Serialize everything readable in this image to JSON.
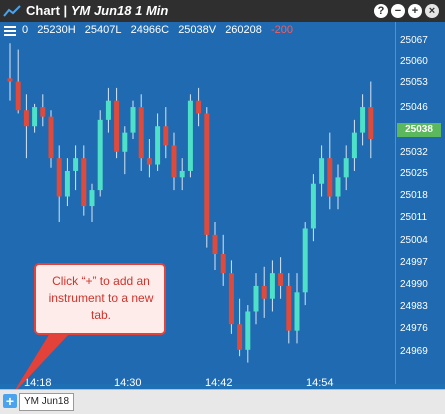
{
  "window": {
    "title": "Chart |",
    "subtitle": "YM Jun18 1 Min",
    "help_btn": "?",
    "min_btn": "−",
    "add_btn": "+",
    "close_btn": "×"
  },
  "infobar": {
    "volume": "0",
    "high": "25230H",
    "low": "25407L",
    "close": "24966C",
    "vol": "25038V",
    "count": "260208",
    "change": "-200"
  },
  "price_axis": {
    "labels": [
      "25067",
      "25060",
      "25053",
      "25046",
      "25039",
      "25032",
      "25025",
      "25018",
      "25011",
      "25004",
      "24997",
      "24990",
      "24983",
      "24976",
      "24969"
    ],
    "current_price": "25038",
    "current_price_color": "#5cb85c"
  },
  "time_axis": {
    "labels": [
      "14:18",
      "14:30",
      "14:42",
      "14:54"
    ]
  },
  "callout": {
    "text": "Click “+” to add an instrument to a new tab."
  },
  "bottom": {
    "add_label": "+",
    "tab_label": "YM Jun18"
  },
  "colors": {
    "background": "#1f6ab0",
    "up_candle": "#4fe0c8",
    "down_candle": "#e04a3a",
    "titlebar": "#2f2f2f"
  }
}
